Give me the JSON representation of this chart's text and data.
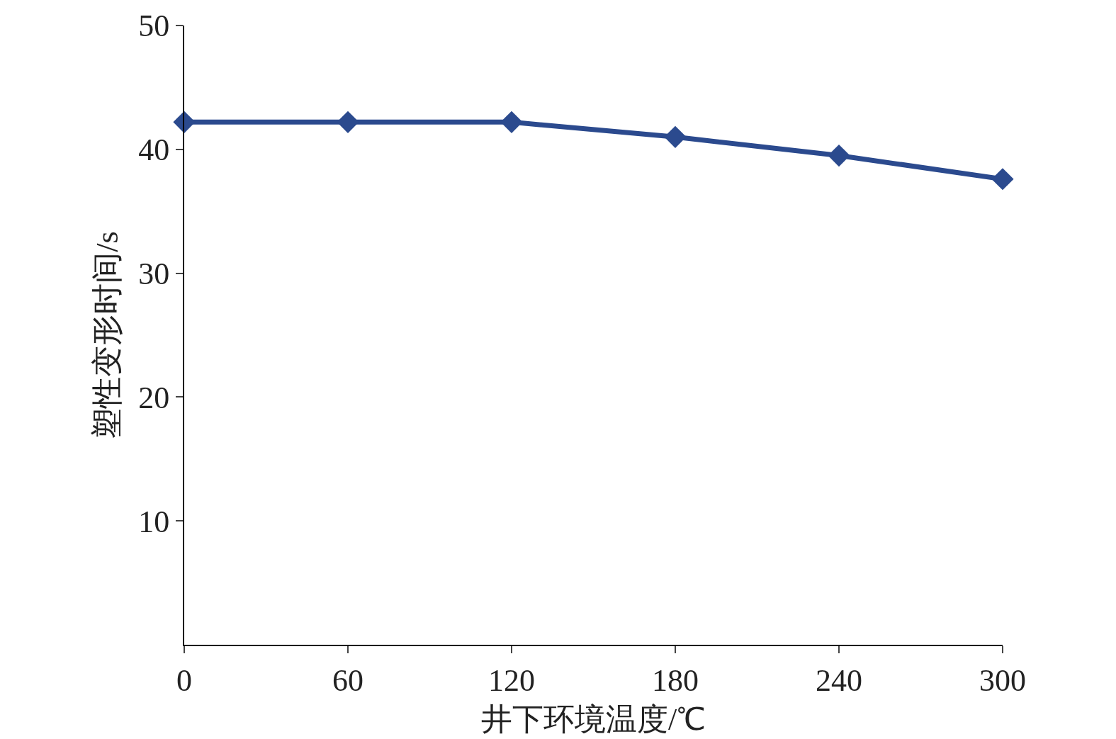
{
  "chart_data": {
    "type": "line",
    "xlabel": "井下环境温度/℃",
    "ylabel": "塑性变形时间/s",
    "x": [
      0,
      60,
      120,
      180,
      240,
      300
    ],
    "series": [
      {
        "color": "#2b4a8e",
        "values": [
          42.2,
          42.2,
          42.2,
          41.0,
          39.5,
          37.6
        ]
      }
    ],
    "xlim": [
      0,
      300
    ],
    "xticks": [
      0,
      60,
      120,
      180,
      240,
      300
    ],
    "ylim": [
      0,
      50
    ],
    "yticks": [
      10,
      20,
      30,
      40,
      50
    ],
    "marker": "diamond",
    "line_style": "solid"
  }
}
